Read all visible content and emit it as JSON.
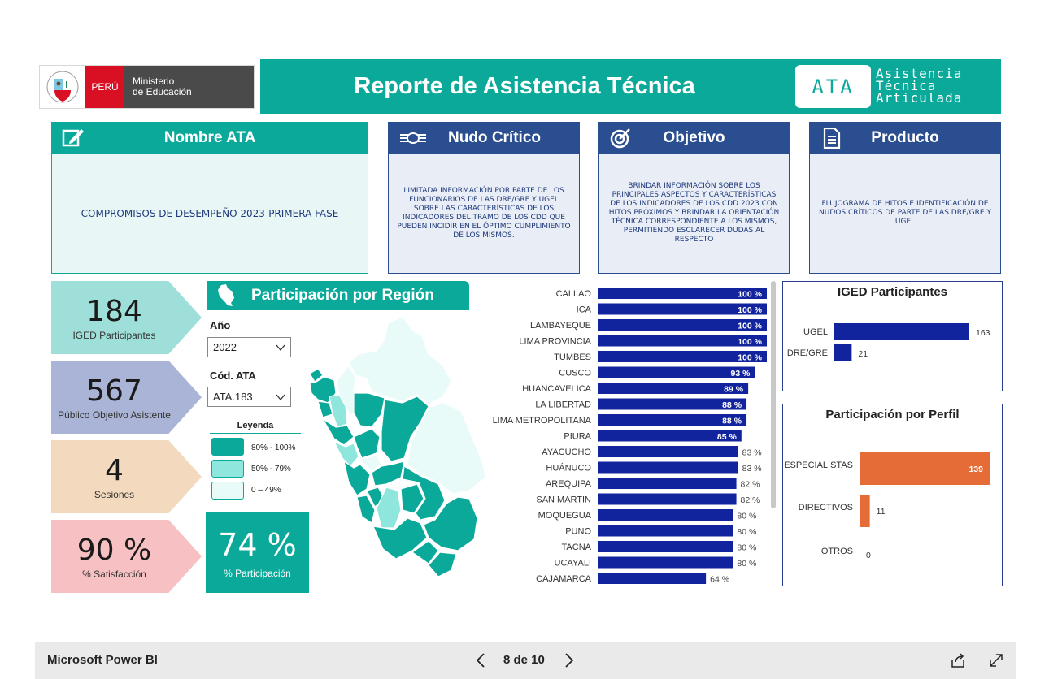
{
  "header": {
    "logo": {
      "peru": "PERÚ",
      "ministry_line1": "Ministerio",
      "ministry_line2": "de Educación"
    },
    "title": "Reporte de Asistencia Técnica",
    "badge": "ATA",
    "badge_full": [
      "Asistencia",
      "Técnica",
      "Articulada"
    ],
    "color": "#0aa99a"
  },
  "cards": [
    {
      "title": "Nombre ATA",
      "icon": "edit-icon",
      "body": "COMPROMISOS DE DESEMPEÑO 2023-PRIMERA FASE",
      "head_color": "#0aa99a",
      "body_color": "#e8f6f6"
    },
    {
      "title": "Nudo Crítico",
      "icon": "knot-icon",
      "body": "LIMITADA INFORMACIÓN POR PARTE DE LOS FUNCIONARIOS DE LAS DRE/GRE Y UGEL SOBRE LAS CARACTERÍSTICAS DE LOS INDICADORES DEL TRAMO DE LOS CDD QUE PUEDEN INCIDIR EN EL ÓPTIMO CUMPLIMIENTO DE LOS MISMOS.",
      "head_color": "#2a4e8f",
      "body_color": "#e8edf6"
    },
    {
      "title": "Objetivo",
      "icon": "target-icon",
      "body": "BRINDAR INFORMACIÓN SOBRE  LOS PRINCIPALES ASPECTOS Y CARACTERÍSTICAS DE LOS INDICADORES DE LOS CDD 2023 CON HITOS PRÓXIMOS Y BRINDAR LA ORIENTACIÓN TÉCNICA CORRESPONDIENTE A LOS MISMOS, PERMITIENDO ESCLARECER DUDAS AL RESPECTO",
      "head_color": "#2a4e8f",
      "body_color": "#e8edf6"
    },
    {
      "title": "Producto",
      "icon": "document-icon",
      "body": "FLUJOGRAMA DE HITOS E IDENTIFICACIÓN DE NUDOS CRÍTICOS DE PARTE DE LAS DRE/GRE Y UGEL",
      "head_color": "#2a4e8f",
      "body_color": "#e8edf6"
    }
  ],
  "kpis": [
    {
      "value": "184",
      "label": "IGED Participantes",
      "color": "#9edfd9"
    },
    {
      "value": "567",
      "label": "Público Objetivo Asistente",
      "color": "#aab4d6"
    },
    {
      "value": "4",
      "label": "Sesiones",
      "color": "#f3d9bd"
    },
    {
      "value": "90 %",
      "label": "% Satisfacción",
      "color": "#f7c1c3"
    }
  ],
  "region": {
    "title": "Participación por Región",
    "filters": [
      {
        "label": "Año",
        "value": "2022"
      },
      {
        "label": "Cód. ATA",
        "value": "ATA.183"
      }
    ],
    "legend": {
      "title": "Leyenda",
      "items": [
        {
          "label": "80% - 100%",
          "color": "#0aa99a"
        },
        {
          "label": "50% - 79%",
          "color": "#8fe6dd"
        },
        {
          "label": "0 – 49%",
          "color": "#e9fbf9"
        }
      ]
    },
    "participation": {
      "value": "74 %",
      "label": "% Participación"
    }
  },
  "chart_data": [
    {
      "type": "bar",
      "orientation": "horizontal",
      "categories": [
        "CALLAO",
        "ICA",
        "LAMBAYEQUE",
        "LIMA PROVINCIA",
        "TUMBES",
        "CUSCO",
        "HUANCAVELICA",
        "LA LIBERTAD",
        "LIMA METROPOLITANA",
        "PIURA",
        "AYACUCHO",
        "HUÁNUCO",
        "AREQUIPA",
        "SAN MARTIN",
        "MOQUEGUA",
        "PUNO",
        "TACNA",
        "UCAYALI",
        "CAJAMARCA"
      ],
      "values": [
        100,
        100,
        100,
        100,
        100,
        93,
        89,
        88,
        88,
        85,
        83,
        83,
        82,
        82,
        80,
        80,
        80,
        80,
        64
      ],
      "labels": [
        "100 %",
        "100 %",
        "100 %",
        "100 %",
        "100 %",
        "93 %",
        "89 %",
        "88 %",
        "88 %",
        "85 %",
        "83 %",
        "83 %",
        "82 %",
        "82 %",
        "80 %",
        "80 %",
        "80 %",
        "80 %",
        "64 %"
      ],
      "xlim": [
        0,
        100
      ],
      "color": "#12239e"
    },
    {
      "type": "bar",
      "orientation": "horizontal",
      "title": "IGED Participantes",
      "categories": [
        "UGEL",
        "DRE/GRE"
      ],
      "values": [
        163,
        21
      ],
      "color": "#12239e"
    },
    {
      "type": "bar",
      "orientation": "horizontal",
      "title": "Participación por Perfil",
      "categories": [
        "ESPECIALISTAS",
        "DIRECTIVOS",
        "OTROS"
      ],
      "values": [
        139,
        11,
        0
      ],
      "color": "#e66c37"
    }
  ],
  "footer": {
    "brand": "Microsoft Power BI",
    "page": "8 de 10"
  }
}
